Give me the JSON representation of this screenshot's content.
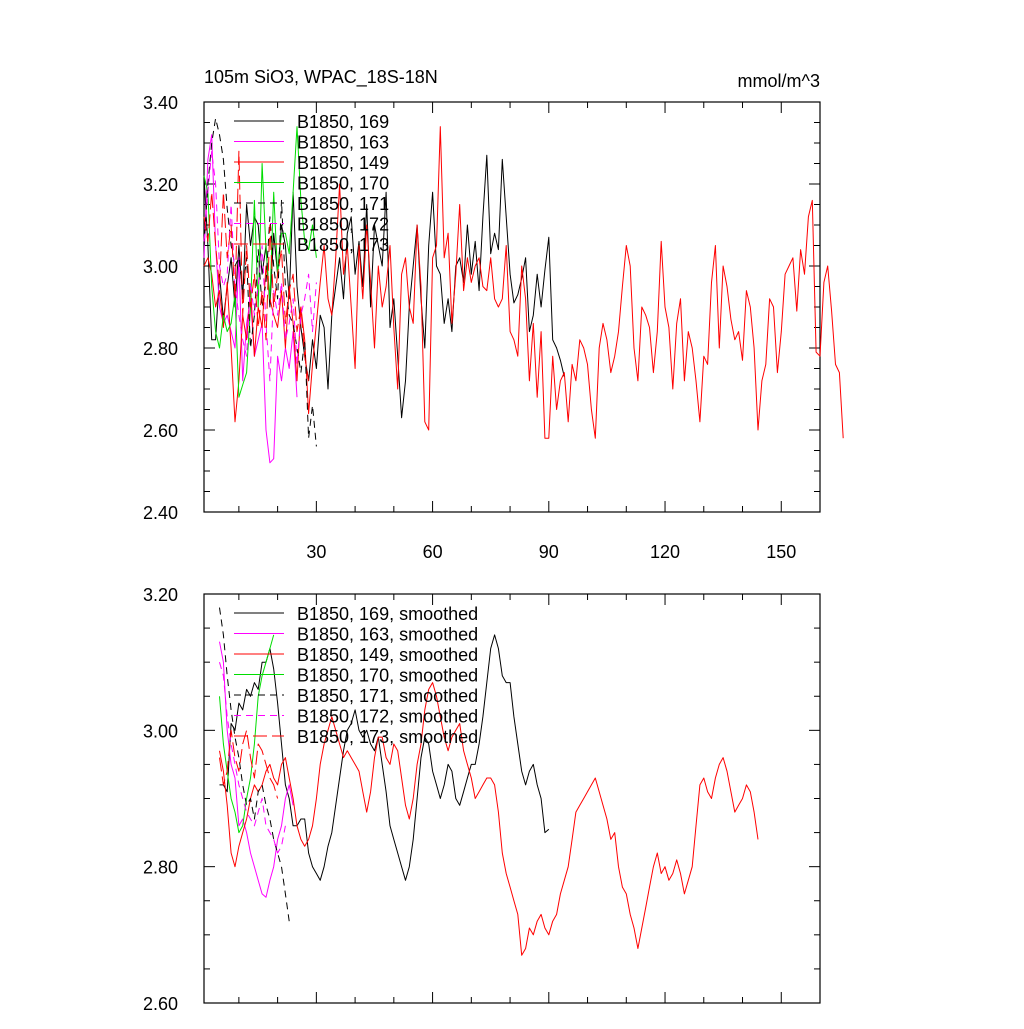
{
  "chart_data": [
    {
      "type": "line",
      "title": "105m SiO3, WPAC_18S-18N",
      "units": "mmol/m^3",
      "xlim": [
        1,
        160
      ],
      "ylim": [
        2.4,
        3.4
      ],
      "xticks": [
        30,
        60,
        90,
        120,
        150
      ],
      "xtick_labels": [
        "30",
        "60",
        "90",
        "120",
        "150"
      ],
      "yticks": [
        2.4,
        2.6,
        2.8,
        3.0,
        3.2,
        3.4
      ],
      "ytick_labels": [
        "2.40",
        "2.60",
        "2.80",
        "3.00",
        "3.20",
        "3.40"
      ],
      "legend_position": "top-left",
      "series": [
        {
          "name": "B1850, 169",
          "color": "#000000",
          "dash": "solid",
          "x_start": 1,
          "values": [
            3.22,
            3.05,
            2.82,
            2.82,
            2.98,
            2.87,
            2.95,
            3.02,
            2.9,
            3.05,
            2.92,
            3.15,
            3.05,
            3.12,
            3.1,
            2.98,
            3.05,
            2.9,
            3.08,
            2.98,
            3.1,
            3.05,
            2.92,
            3.18,
            2.95,
            2.85,
            2.78,
            2.72,
            2.82,
            2.75,
            2.88,
            2.85,
            2.7,
            2.88,
            2.95,
            3.02,
            2.92,
            3.08,
            3.12,
            2.98,
            3.06,
            2.95,
            3.15,
            2.9,
            3.1,
            3.05,
            3.0,
            3.18,
            2.85,
            2.92,
            2.78,
            2.63,
            2.72,
            2.9,
            3.0,
            3.1,
            2.92,
            2.8,
            3.05,
            3.18,
            3.0,
            2.98,
            2.86,
            2.92,
            2.84,
            3.0,
            3.02,
            2.96,
            3.1,
            2.98,
            3.06,
            2.94,
            3.12,
            3.27,
            3.03,
            3.08,
            3.04,
            3.26,
            3.12,
            2.98,
            2.91,
            2.93,
            2.97,
            3.02,
            2.84,
            2.88,
            2.98,
            2.9,
            2.99,
            3.07,
            2.82,
            2.8,
            2.77,
            2.73
          ]
        },
        {
          "name": "B1850, 163",
          "color": "#ff00ff",
          "dash": "solid",
          "x_start": 1,
          "values": [
            3.02,
            3.26,
            3.32,
            3.05,
            2.9,
            2.86,
            2.88,
            2.84,
            2.8,
            3.02,
            2.72,
            2.86,
            2.92,
            2.78,
            2.82,
            2.86,
            2.6,
            2.52,
            2.53,
            2.78,
            2.72,
            2.8,
            2.75,
            2.84,
            2.68
          ]
        },
        {
          "name": "B1850, 149",
          "color": "#ff0000",
          "dash": "solid",
          "x_start": 1,
          "values": [
            3.0,
            3.02,
            2.98,
            2.9,
            2.94,
            2.85,
            2.96,
            2.8,
            2.62,
            2.72,
            2.88,
            2.82,
            2.95,
            2.78,
            2.9,
            2.85,
            3.0,
            2.92,
            2.88,
            2.85,
            2.94,
            2.8,
            2.95,
            2.86,
            2.72,
            2.9,
            2.82,
            2.64,
            2.76,
            2.86,
            2.96,
            3.05,
            2.92,
            2.88,
            3.02,
            3.2,
            2.98,
            3.05,
            2.9,
            2.75,
            3.05,
            2.92,
            3.1,
            2.96,
            2.8,
            3.0,
            2.9,
            2.95,
            3.05,
            2.85,
            2.7,
            2.98,
            3.02,
            2.9,
            2.86,
            3.1,
            2.95,
            2.62,
            2.6,
            3.02,
            3.05,
            3.34,
            3.02,
            3.08,
            2.86,
            2.98,
            3.15,
            2.94,
            3.02,
            2.96,
            3.0,
            3.02,
            2.95,
            2.94,
            3.02,
            2.92,
            2.9,
            2.92,
            3.05,
            2.84,
            2.82,
            2.78,
            3.0,
            2.92,
            2.72,
            2.86,
            2.68,
            2.84,
            2.58,
            2.58,
            2.78,
            2.65,
            2.72,
            2.74,
            2.62,
            2.76,
            2.72,
            2.82,
            2.8,
            2.76,
            2.65,
            2.58,
            2.8,
            2.86,
            2.82,
            2.74,
            2.78,
            2.84,
            2.95,
            3.05,
            3.0,
            2.8,
            2.72,
            2.9,
            2.88,
            2.85,
            2.74,
            2.84,
            3.06,
            2.9,
            2.85,
            2.7,
            2.86,
            2.92,
            2.72,
            2.84,
            2.8,
            2.72,
            2.62,
            2.78,
            2.76,
            2.96,
            3.05,
            2.8,
            3.0,
            2.95,
            2.87,
            2.82,
            2.84,
            2.77,
            2.94,
            2.9,
            2.8,
            2.6,
            2.72,
            2.76,
            2.92,
            2.9,
            2.74,
            2.84,
            2.98,
            3.0,
            3.02,
            2.89,
            3.04,
            2.98,
            3.12,
            3.16,
            2.79,
            2.78,
            2.96,
            3.0,
            2.89,
            2.76,
            2.74,
            2.58
          ]
        },
        {
          "name": "B1850, 170",
          "color": "#00dd00",
          "dash": "solid",
          "x_start": 1,
          "values": [
            3.22,
            3.18,
            2.95,
            2.84,
            2.8,
            2.88,
            2.84,
            2.86,
            2.93,
            2.68,
            2.71,
            2.74,
            2.9,
            3.16,
            2.9,
            3.25,
            3.04,
            2.92,
            3.18,
            2.98,
            3.08,
            3.08,
            3.03,
            3.18,
            3.34,
            3.16,
            3.06,
            3.04,
            3.1,
            3.02
          ]
        },
        {
          "name": "B1850, 171",
          "color": "#000000",
          "dash": "dashed",
          "x_start": 1,
          "values": [
            3.05,
            3.2,
            3.3,
            3.36,
            3.32,
            3.26,
            3.14,
            3.05,
            3.0,
            3.02,
            2.94,
            3.02,
            2.8,
            2.88,
            3.04,
            2.9,
            2.96,
            3.12,
            3.0,
            2.92,
            3.16,
            2.95,
            2.88,
            2.86,
            2.8,
            2.74,
            2.82,
            2.58,
            2.66,
            2.56
          ]
        },
        {
          "name": "B1850, 172",
          "color": "#ff00ff",
          "dash": "dashed",
          "x_start": 1,
          "values": [
            3.06,
            3.18,
            3.28,
            3.2,
            3.0,
            2.95,
            2.98,
            3.15,
            2.95,
            2.88,
            2.82,
            2.78,
            2.96,
            2.88,
            2.95,
            3.05,
            2.86,
            2.72,
            2.94,
            2.88,
            2.96,
            2.82,
            2.86,
            2.92,
            2.76,
            2.88,
            2.92,
            2.98,
            2.84,
            2.96
          ]
        },
        {
          "name": "B1850, 173",
          "color": "#ff0000",
          "dash": "longdash",
          "x_start": 1,
          "values": [
            3.12,
            3.06,
            3.18,
            3.05,
            2.95,
            3.18,
            3.02,
            3.1,
            2.92,
            3.28,
            2.88,
            3.05,
            2.9,
            2.98,
            2.85,
            2.94,
            2.82,
            3.1,
            2.9,
            2.98,
            3.04,
            2.86,
            2.94,
            2.98,
            2.84,
            2.9,
            2.78,
            2.72
          ]
        }
      ]
    },
    {
      "type": "line",
      "xlim": [
        1,
        160
      ],
      "ylim": [
        2.6,
        3.2
      ],
      "xticks": [
        30,
        60,
        90,
        120,
        150
      ],
      "yticks": [
        2.6,
        2.8,
        3.0,
        3.2
      ],
      "ytick_labels": [
        "2.60",
        "2.80",
        "3.00",
        "3.20"
      ],
      "legend_position": "top-left",
      "series": [
        {
          "name": "B1850, 169, smoothed",
          "color": "#000000",
          "dash": "solid",
          "x_start": 5,
          "values": [
            2.92,
            2.92,
            2.91,
            3.01,
            3.0,
            3.04,
            3.03,
            3.06,
            3.05,
            3.07,
            3.06,
            3.1,
            3.1,
            3.12,
            3.09,
            3.04,
            2.98,
            2.92,
            2.9,
            2.86,
            2.86,
            2.87,
            2.87,
            2.82,
            2.8,
            2.79,
            2.78,
            2.8,
            2.83,
            2.85,
            2.89,
            2.93,
            2.97,
            3.0,
            3.01,
            3.03,
            3.0,
            2.99,
            3.0,
            2.98,
            2.97,
            2.99,
            2.95,
            2.91,
            2.86,
            2.84,
            2.82,
            2.8,
            2.78,
            2.8,
            2.84,
            2.9,
            2.96,
            2.99,
            2.98,
            2.94,
            2.92,
            2.9,
            2.92,
            2.95,
            2.94,
            2.9,
            2.89,
            2.91,
            2.93,
            2.95,
            2.95,
            2.98,
            3.02,
            3.07,
            3.12,
            3.14,
            3.12,
            3.08,
            3.07,
            3.07,
            3.02,
            2.98,
            2.94,
            2.92,
            2.94,
            2.95,
            2.92,
            2.9,
            2.85,
            2.855
          ]
        },
        {
          "name": "B1850, 163, smoothed",
          "color": "#ff00ff",
          "dash": "solid",
          "x_start": 5,
          "values": [
            3.13,
            3.1,
            3.0,
            2.95,
            2.93,
            2.86,
            2.87,
            2.85,
            2.82,
            2.8,
            2.78,
            2.76,
            2.755,
            2.78,
            2.8,
            2.84,
            2.86,
            2.9,
            2.92,
            2.89
          ]
        },
        {
          "name": "B1850, 149, smoothed",
          "color": "#ff0000",
          "dash": "solid",
          "x_start": 5,
          "values": [
            2.97,
            2.94,
            2.89,
            2.82,
            2.8,
            2.83,
            2.85,
            2.87,
            2.9,
            2.92,
            2.91,
            2.92,
            2.94,
            2.95,
            2.93,
            2.92,
            2.95,
            2.96,
            2.93,
            2.9,
            2.86,
            2.84,
            2.83,
            2.84,
            2.86,
            2.9,
            2.95,
            2.98,
            3.0,
            3.02,
            3.0,
            2.98,
            2.96,
            2.97,
            2.96,
            2.95,
            2.94,
            2.91,
            2.88,
            2.91,
            2.96,
            2.99,
            2.99,
            2.96,
            2.95,
            2.98,
            2.97,
            2.93,
            2.89,
            2.87,
            2.9,
            2.95,
            2.98,
            3.03,
            3.06,
            3.07,
            3.05,
            3.02,
            2.99,
            2.97,
            2.99,
            3.0,
            3.01,
            2.97,
            2.95,
            2.93,
            2.9,
            2.91,
            2.92,
            2.93,
            2.93,
            2.92,
            2.88,
            2.82,
            2.79,
            2.77,
            2.75,
            2.73,
            2.67,
            2.68,
            2.71,
            2.7,
            2.72,
            2.73,
            2.71,
            2.7,
            2.72,
            2.73,
            2.76,
            2.78,
            2.8,
            2.84,
            2.88,
            2.89,
            2.9,
            2.91,
            2.92,
            2.93,
            2.91,
            2.89,
            2.87,
            2.84,
            2.85,
            2.8,
            2.77,
            2.76,
            2.73,
            2.71,
            2.68,
            2.71,
            2.74,
            2.77,
            2.8,
            2.82,
            2.79,
            2.8,
            2.78,
            2.79,
            2.81,
            2.79,
            2.76,
            2.78,
            2.8,
            2.86,
            2.92,
            2.93,
            2.91,
            2.9,
            2.93,
            2.95,
            2.96,
            2.94,
            2.91,
            2.88,
            2.89,
            2.9,
            2.92,
            2.91,
            2.88,
            2.84
          ]
        },
        {
          "name": "B1850, 170, smoothed",
          "color": "#00dd00",
          "dash": "solid",
          "x_start": 5,
          "values": [
            3.05,
            2.98,
            2.94,
            2.9,
            2.88,
            2.85,
            2.86,
            2.9,
            2.93,
            2.98,
            3.05,
            3.08,
            3.1,
            3.12,
            3.14
          ]
        },
        {
          "name": "B1850, 171, smoothed",
          "color": "#000000",
          "dash": "dashed",
          "x_start": 5,
          "values": [
            3.18,
            3.14,
            3.08,
            3.03,
            2.99,
            2.96,
            2.92,
            2.89,
            2.9,
            2.87,
            2.91,
            2.92,
            2.89,
            2.87,
            2.84,
            2.82,
            2.8,
            2.76,
            2.72
          ]
        },
        {
          "name": "B1850, 172, smoothed",
          "color": "#ff00ff",
          "dash": "dashed",
          "x_start": 5,
          "values": [
            3.1,
            3.08,
            3.02,
            2.98,
            2.95,
            2.92,
            2.9,
            2.88,
            2.87,
            2.86,
            2.88,
            2.9,
            2.86,
            2.85,
            2.84,
            2.82,
            2.83,
            2.86
          ]
        },
        {
          "name": "B1850, 173, smoothed",
          "color": "#ff0000",
          "dash": "longdash",
          "x_start": 5,
          "values": [
            2.96,
            2.92,
            2.94,
            3.0,
            2.96,
            2.94,
            2.98,
            3.0,
            2.96,
            2.93,
            2.98,
            2.97,
            2.95,
            2.93,
            2.92,
            2.9
          ]
        }
      ]
    }
  ]
}
